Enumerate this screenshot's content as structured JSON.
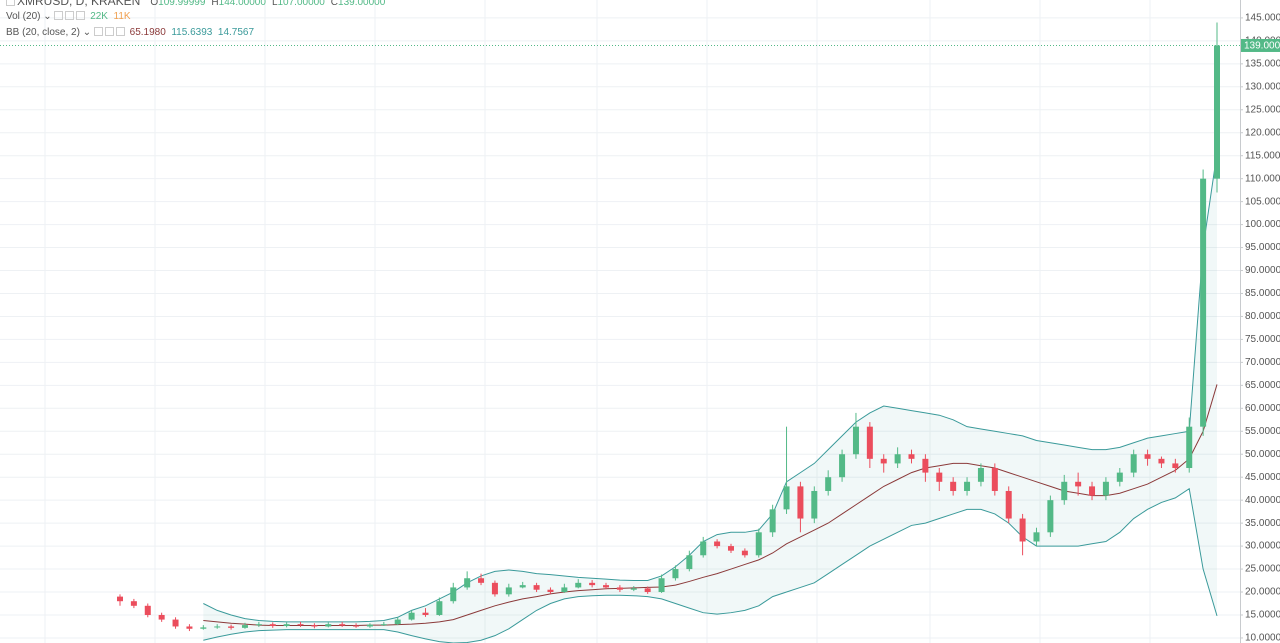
{
  "header": {
    "symbol": "XMRUSD, D, KRAKEN",
    "ohlc": [
      {
        "key": "O",
        "value": "109.99999"
      },
      {
        "key": "H",
        "value": "144.00000"
      },
      {
        "key": "L",
        "value": "107.00000"
      },
      {
        "key": "C",
        "value": "139.00000"
      }
    ]
  },
  "indicators": {
    "vol": {
      "title": "Vol (20)",
      "values": [
        "22K",
        "11K"
      ]
    },
    "bb": {
      "title": "BB (20, close, 2)",
      "values": [
        "65.1980",
        "115.6393",
        "14.7567"
      ]
    }
  },
  "chart_data": {
    "type": "candlestick",
    "up_color": "#53b987",
    "down_color": "#eb4d5c",
    "grid": true,
    "open": [
      19,
      18,
      17,
      15,
      14,
      12.5,
      12,
      12.3,
      12.5,
      12.2,
      12.8,
      13,
      12.6,
      13,
      12.8,
      12.5,
      13,
      12.7,
      12.5,
      12.9,
      13,
      14,
      15.5,
      15,
      18,
      21,
      23,
      22,
      19.5,
      21,
      21.5,
      20.5,
      20,
      21,
      22,
      21.5,
      21,
      20.5,
      20.8,
      20,
      23,
      25,
      28,
      31,
      30,
      29,
      28,
      33,
      38,
      43,
      36,
      42,
      45,
      50,
      56,
      49,
      48,
      50,
      49,
      46,
      44,
      42,
      44,
      47,
      42,
      36,
      31,
      33,
      40,
      44,
      43,
      41,
      44,
      46,
      50,
      49,
      48,
      47,
      56,
      110
    ],
    "high": [
      19.5,
      18.5,
      17.5,
      15.5,
      14.5,
      13,
      12.8,
      13,
      12.9,
      13.3,
      13.5,
      13.4,
      13.4,
      13.5,
      13.2,
      13.4,
      13.5,
      13.2,
      13.2,
      13.5,
      14.5,
      16,
      16.5,
      18.8,
      22,
      24.5,
      24,
      22.5,
      21.8,
      22.2,
      22,
      21,
      21.8,
      22.8,
      22.6,
      22,
      21.5,
      21.3,
      21.2,
      23.8,
      25.8,
      29,
      32,
      31.5,
      30.5,
      29.5,
      33.8,
      39,
      56,
      44,
      43,
      46.5,
      51,
      59,
      57,
      50,
      51.5,
      51,
      50,
      47,
      45,
      45,
      48,
      48,
      43,
      37,
      34,
      41,
      45.5,
      46,
      44,
      45,
      47,
      51,
      51,
      49.5,
      49,
      58,
      112,
      144
    ],
    "low": [
      17,
      16.5,
      14.5,
      13.5,
      12,
      11.5,
      11.8,
      12,
      11.8,
      12,
      12.4,
      12.2,
      12.3,
      12.4,
      12.1,
      12.3,
      12.4,
      12.2,
      12.2,
      12.6,
      12.8,
      13.8,
      14.6,
      14.8,
      17.5,
      20.5,
      21.5,
      19,
      19,
      20.8,
      20,
      19.6,
      19.8,
      20.8,
      21,
      20.6,
      20,
      20.2,
      19.6,
      19.8,
      22.5,
      24.5,
      27.5,
      29.5,
      28.5,
      27.5,
      27.5,
      32,
      37,
      33,
      35,
      41,
      44,
      49,
      47,
      46,
      47,
      48,
      44,
      42,
      41,
      41,
      43,
      41,
      35,
      28,
      30,
      32,
      39,
      41,
      40,
      40,
      43,
      45,
      47.5,
      47,
      46,
      46,
      54,
      107
    ],
    "close": [
      18,
      17,
      15,
      14,
      12.5,
      12,
      12.3,
      12.5,
      12.2,
      12.8,
      13,
      12.6,
      13,
      12.8,
      12.5,
      13,
      12.7,
      12.5,
      12.9,
      13,
      14,
      15.5,
      15,
      18,
      21,
      23,
      22,
      19.5,
      21,
      21.5,
      20.5,
      20,
      21,
      22,
      21.5,
      21,
      20.5,
      20.8,
      20,
      23,
      25,
      28,
      31,
      30,
      29,
      28,
      33,
      38,
      43,
      36,
      42,
      45,
      50,
      56,
      49,
      48,
      50,
      49,
      46,
      44,
      42,
      44,
      47,
      42,
      36,
      31,
      33,
      40,
      44,
      43,
      41,
      44,
      46,
      50,
      49,
      48,
      47,
      56,
      110,
      139
    ],
    "series": [
      {
        "color": "#8b3a3a",
        "values": [
          null,
          null,
          null,
          null,
          null,
          null,
          13.8,
          13.5,
          13.2,
          13,
          12.8,
          12.7,
          12.7,
          12.7,
          12.7,
          12.7,
          12.7,
          12.7,
          12.8,
          12.8,
          12.9,
          13,
          13.2,
          13.5,
          14,
          15,
          16,
          17,
          17.8,
          18.5,
          19,
          19.6,
          20,
          20.3,
          20.5,
          20.7,
          20.8,
          20.9,
          21,
          21.1,
          21.5,
          22.3,
          23.2,
          24,
          25,
          26,
          27,
          28.5,
          30.5,
          32,
          33.5,
          35,
          37,
          39,
          41,
          43,
          44.5,
          46,
          47,
          47.5,
          48,
          48,
          47.5,
          47,
          46,
          45,
          44,
          43,
          42,
          41.5,
          41,
          41,
          41.5,
          42.5,
          43.5,
          45,
          46.5,
          49,
          55,
          65.2
        ]
      },
      {
        "color": "#3a9a9a",
        "values": [
          null,
          null,
          null,
          null,
          null,
          null,
          17.5,
          16,
          15,
          14.2,
          13.8,
          13.6,
          13.5,
          13.5,
          13.5,
          13.5,
          13.5,
          13.5,
          13.6,
          13.8,
          14.5,
          16,
          17,
          18.5,
          20,
          22,
          23.5,
          24.5,
          24.8,
          24.5,
          24,
          23.8,
          23.5,
          23.2,
          23,
          22.8,
          22.6,
          22.5,
          22.5,
          23.5,
          25.5,
          28,
          31,
          32.5,
          33,
          33,
          33.5,
          37,
          44,
          46,
          48,
          51,
          54,
          57,
          59,
          60.5,
          60,
          59.5,
          59,
          58.5,
          57.5,
          56,
          55.5,
          55,
          54.5,
          54,
          53,
          52.5,
          52,
          51.5,
          51,
          51,
          51.5,
          52.5,
          53.5,
          54,
          54.5,
          55,
          95,
          115.6
        ]
      },
      {
        "color": "#3a9a9a",
        "values": [
          null,
          null,
          null,
          null,
          null,
          null,
          9.5,
          10.2,
          10.8,
          11.3,
          11.6,
          11.7,
          11.8,
          11.8,
          11.8,
          11.8,
          11.8,
          11.8,
          11.8,
          11.8,
          11.3,
          10.5,
          9.8,
          9.2,
          8.9,
          9,
          9.5,
          10.5,
          12,
          14,
          16,
          17.5,
          18.5,
          19,
          19.2,
          19.3,
          19.3,
          19.2,
          19,
          18.5,
          17.5,
          16.5,
          15.5,
          15.2,
          15.5,
          16,
          17,
          19,
          20,
          21,
          22,
          24,
          26,
          28,
          30,
          31.5,
          33,
          34.5,
          35,
          36,
          37,
          38,
          38,
          37,
          35,
          32,
          30,
          30,
          30,
          30,
          30.5,
          31,
          33,
          36,
          38,
          39.5,
          40.5,
          42.5,
          25,
          14.8
        ]
      }
    ],
    "ylim": [
      8.9,
      148.9
    ],
    "yticks": [
      {
        "value": 10,
        "label": "10.00000"
      },
      {
        "value": 15,
        "label": "15.00000"
      },
      {
        "value": 20,
        "label": "20.00000"
      },
      {
        "value": 25,
        "label": "25.00000"
      },
      {
        "value": 30,
        "label": "30.00000"
      },
      {
        "value": 35,
        "label": "35.00000"
      },
      {
        "value": 40,
        "label": "40.00000"
      },
      {
        "value": 45,
        "label": "45.00000"
      },
      {
        "value": 50,
        "label": "50.00000"
      },
      {
        "value": 55,
        "label": "55.00000"
      },
      {
        "value": 60,
        "label": "60.00000"
      },
      {
        "value": 65,
        "label": "65.00000"
      },
      {
        "value": 70,
        "label": "70.00000"
      },
      {
        "value": 75,
        "label": "75.00000"
      },
      {
        "value": 80,
        "label": "80.00000"
      },
      {
        "value": 85,
        "label": "85.00000"
      },
      {
        "value": 90,
        "label": "90.00000"
      },
      {
        "value": 95,
        "label": "95.00000"
      },
      {
        "value": 100,
        "label": "100.00000"
      },
      {
        "value": 105,
        "label": "105.00000"
      },
      {
        "value": 110,
        "label": "110.00000"
      },
      {
        "value": 115,
        "label": "115.00000"
      },
      {
        "value": 120,
        "label": "120.00000"
      },
      {
        "value": 125,
        "label": "125.00000"
      },
      {
        "value": 130,
        "label": "130.00000"
      },
      {
        "value": 135,
        "label": "135.00000"
      },
      {
        "value": 140,
        "label": "140.00000"
      },
      {
        "value": 145,
        "label": "145.00000"
      }
    ],
    "last_price": {
      "value": 139,
      "label": "139.0000",
      "color": "#53b987"
    }
  }
}
